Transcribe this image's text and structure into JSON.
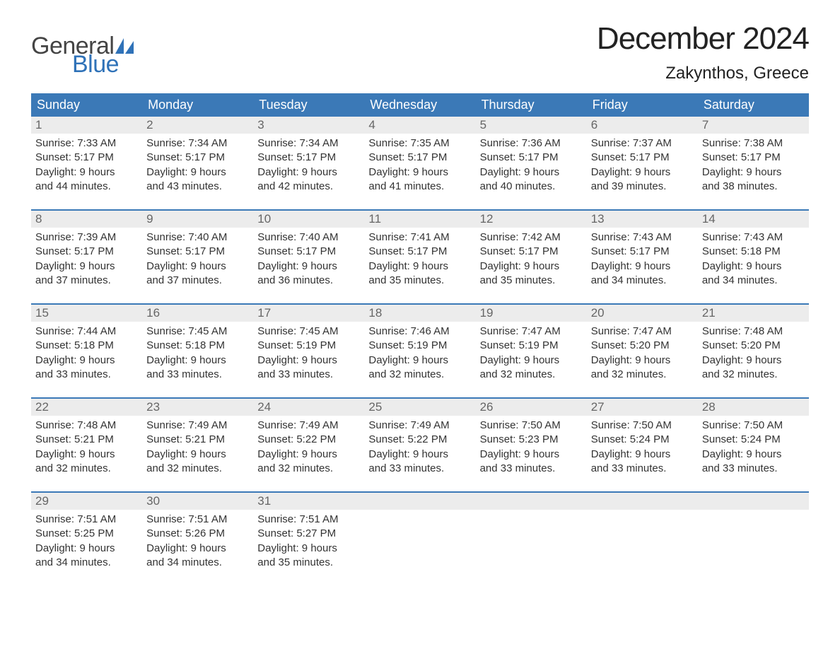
{
  "logo": {
    "text_general": "General",
    "text_blue": "Blue",
    "sail_color": "#2f72b8",
    "text_general_color": "#444444",
    "text_blue_color": "#2f72b8"
  },
  "title": "December 2024",
  "location": "Zakynthos, Greece",
  "colors": {
    "header_bg": "#3b79b7",
    "header_text": "#ffffff",
    "daynum_bg": "#ececec",
    "daynum_text": "#666666",
    "week_border": "#3b79b7",
    "body_text": "#333333",
    "page_bg": "#ffffff"
  },
  "typography": {
    "title_fontsize": 44,
    "location_fontsize": 24,
    "weekday_fontsize": 18,
    "daynum_fontsize": 17,
    "cell_fontsize": 15,
    "logo_fontsize": 34,
    "font_family": "Arial"
  },
  "weekdays": [
    "Sunday",
    "Monday",
    "Tuesday",
    "Wednesday",
    "Thursday",
    "Friday",
    "Saturday"
  ],
  "weeks": [
    {
      "days": [
        {
          "n": "1",
          "sunrise": "Sunrise: 7:33 AM",
          "sunset": "Sunset: 5:17 PM",
          "d1": "Daylight: 9 hours",
          "d2": "and 44 minutes."
        },
        {
          "n": "2",
          "sunrise": "Sunrise: 7:34 AM",
          "sunset": "Sunset: 5:17 PM",
          "d1": "Daylight: 9 hours",
          "d2": "and 43 minutes."
        },
        {
          "n": "3",
          "sunrise": "Sunrise: 7:34 AM",
          "sunset": "Sunset: 5:17 PM",
          "d1": "Daylight: 9 hours",
          "d2": "and 42 minutes."
        },
        {
          "n": "4",
          "sunrise": "Sunrise: 7:35 AM",
          "sunset": "Sunset: 5:17 PM",
          "d1": "Daylight: 9 hours",
          "d2": "and 41 minutes."
        },
        {
          "n": "5",
          "sunrise": "Sunrise: 7:36 AM",
          "sunset": "Sunset: 5:17 PM",
          "d1": "Daylight: 9 hours",
          "d2": "and 40 minutes."
        },
        {
          "n": "6",
          "sunrise": "Sunrise: 7:37 AM",
          "sunset": "Sunset: 5:17 PM",
          "d1": "Daylight: 9 hours",
          "d2": "and 39 minutes."
        },
        {
          "n": "7",
          "sunrise": "Sunrise: 7:38 AM",
          "sunset": "Sunset: 5:17 PM",
          "d1": "Daylight: 9 hours",
          "d2": "and 38 minutes."
        }
      ]
    },
    {
      "days": [
        {
          "n": "8",
          "sunrise": "Sunrise: 7:39 AM",
          "sunset": "Sunset: 5:17 PM",
          "d1": "Daylight: 9 hours",
          "d2": "and 37 minutes."
        },
        {
          "n": "9",
          "sunrise": "Sunrise: 7:40 AM",
          "sunset": "Sunset: 5:17 PM",
          "d1": "Daylight: 9 hours",
          "d2": "and 37 minutes."
        },
        {
          "n": "10",
          "sunrise": "Sunrise: 7:40 AM",
          "sunset": "Sunset: 5:17 PM",
          "d1": "Daylight: 9 hours",
          "d2": "and 36 minutes."
        },
        {
          "n": "11",
          "sunrise": "Sunrise: 7:41 AM",
          "sunset": "Sunset: 5:17 PM",
          "d1": "Daylight: 9 hours",
          "d2": "and 35 minutes."
        },
        {
          "n": "12",
          "sunrise": "Sunrise: 7:42 AM",
          "sunset": "Sunset: 5:17 PM",
          "d1": "Daylight: 9 hours",
          "d2": "and 35 minutes."
        },
        {
          "n": "13",
          "sunrise": "Sunrise: 7:43 AM",
          "sunset": "Sunset: 5:17 PM",
          "d1": "Daylight: 9 hours",
          "d2": "and 34 minutes."
        },
        {
          "n": "14",
          "sunrise": "Sunrise: 7:43 AM",
          "sunset": "Sunset: 5:18 PM",
          "d1": "Daylight: 9 hours",
          "d2": "and 34 minutes."
        }
      ]
    },
    {
      "days": [
        {
          "n": "15",
          "sunrise": "Sunrise: 7:44 AM",
          "sunset": "Sunset: 5:18 PM",
          "d1": "Daylight: 9 hours",
          "d2": "and 33 minutes."
        },
        {
          "n": "16",
          "sunrise": "Sunrise: 7:45 AM",
          "sunset": "Sunset: 5:18 PM",
          "d1": "Daylight: 9 hours",
          "d2": "and 33 minutes."
        },
        {
          "n": "17",
          "sunrise": "Sunrise: 7:45 AM",
          "sunset": "Sunset: 5:19 PM",
          "d1": "Daylight: 9 hours",
          "d2": "and 33 minutes."
        },
        {
          "n": "18",
          "sunrise": "Sunrise: 7:46 AM",
          "sunset": "Sunset: 5:19 PM",
          "d1": "Daylight: 9 hours",
          "d2": "and 32 minutes."
        },
        {
          "n": "19",
          "sunrise": "Sunrise: 7:47 AM",
          "sunset": "Sunset: 5:19 PM",
          "d1": "Daylight: 9 hours",
          "d2": "and 32 minutes."
        },
        {
          "n": "20",
          "sunrise": "Sunrise: 7:47 AM",
          "sunset": "Sunset: 5:20 PM",
          "d1": "Daylight: 9 hours",
          "d2": "and 32 minutes."
        },
        {
          "n": "21",
          "sunrise": "Sunrise: 7:48 AM",
          "sunset": "Sunset: 5:20 PM",
          "d1": "Daylight: 9 hours",
          "d2": "and 32 minutes."
        }
      ]
    },
    {
      "days": [
        {
          "n": "22",
          "sunrise": "Sunrise: 7:48 AM",
          "sunset": "Sunset: 5:21 PM",
          "d1": "Daylight: 9 hours",
          "d2": "and 32 minutes."
        },
        {
          "n": "23",
          "sunrise": "Sunrise: 7:49 AM",
          "sunset": "Sunset: 5:21 PM",
          "d1": "Daylight: 9 hours",
          "d2": "and 32 minutes."
        },
        {
          "n": "24",
          "sunrise": "Sunrise: 7:49 AM",
          "sunset": "Sunset: 5:22 PM",
          "d1": "Daylight: 9 hours",
          "d2": "and 32 minutes."
        },
        {
          "n": "25",
          "sunrise": "Sunrise: 7:49 AM",
          "sunset": "Sunset: 5:22 PM",
          "d1": "Daylight: 9 hours",
          "d2": "and 33 minutes."
        },
        {
          "n": "26",
          "sunrise": "Sunrise: 7:50 AM",
          "sunset": "Sunset: 5:23 PM",
          "d1": "Daylight: 9 hours",
          "d2": "and 33 minutes."
        },
        {
          "n": "27",
          "sunrise": "Sunrise: 7:50 AM",
          "sunset": "Sunset: 5:24 PM",
          "d1": "Daylight: 9 hours",
          "d2": "and 33 minutes."
        },
        {
          "n": "28",
          "sunrise": "Sunrise: 7:50 AM",
          "sunset": "Sunset: 5:24 PM",
          "d1": "Daylight: 9 hours",
          "d2": "and 33 minutes."
        }
      ]
    },
    {
      "days": [
        {
          "n": "29",
          "sunrise": "Sunrise: 7:51 AM",
          "sunset": "Sunset: 5:25 PM",
          "d1": "Daylight: 9 hours",
          "d2": "and 34 minutes."
        },
        {
          "n": "30",
          "sunrise": "Sunrise: 7:51 AM",
          "sunset": "Sunset: 5:26 PM",
          "d1": "Daylight: 9 hours",
          "d2": "and 34 minutes."
        },
        {
          "n": "31",
          "sunrise": "Sunrise: 7:51 AM",
          "sunset": "Sunset: 5:27 PM",
          "d1": "Daylight: 9 hours",
          "d2": "and 35 minutes."
        },
        {
          "empty": true
        },
        {
          "empty": true
        },
        {
          "empty": true
        },
        {
          "empty": true
        }
      ]
    }
  ]
}
